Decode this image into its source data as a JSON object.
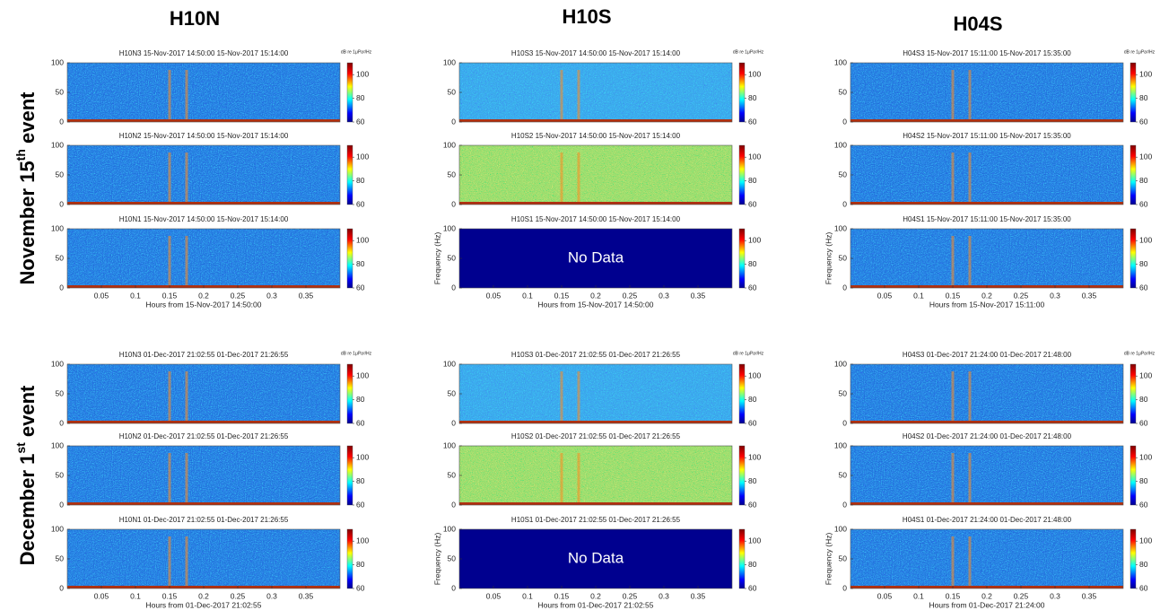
{
  "figure": {
    "columns": [
      "H10N",
      "H10S",
      "H04S"
    ],
    "rows": [
      {
        "label": [
          "November 15",
          "th",
          " event"
        ],
        "groups": [
          {
            "panels": [
              {
                "title": "H10N3 15-Nov-2017 14:50:00 15-Nov-2017 15:14:00"
              },
              {
                "title": "H10N2 15-Nov-2017 14:50:00 15-Nov-2017 15:14:00"
              },
              {
                "title": "H10N1 15-Nov-2017 14:50:00 15-Nov-2017 15:14:00"
              }
            ],
            "xlabel": "Hours from 15-Nov-2017 14:50:00"
          },
          {
            "panels": [
              {
                "title": "H10S3 15-Nov-2017 14:50:00 15-Nov-2017 15:14:00"
              },
              {
                "title": "H10S2 15-Nov-2017 14:50:00 15-Nov-2017 15:14:00"
              },
              {
                "title": "H10S1 15-Nov-2017 14:50:00 15-Nov-2017 15:14:00",
                "no_data": "No Data"
              }
            ],
            "xlabel": "Hours from 15-Nov-2017 14:50:00"
          },
          {
            "panels": [
              {
                "title": "H04S3 15-Nov-2017 15:11:00 15-Nov-2017 15:35:00"
              },
              {
                "title": "H04S2 15-Nov-2017 15:11:00 15-Nov-2017 15:35:00"
              },
              {
                "title": "H04S1 15-Nov-2017 15:11:00 15-Nov-2017 15:35:00"
              }
            ],
            "xlabel": "Hours from 15-Nov-2017 15:11:00"
          }
        ]
      },
      {
        "label": [
          "December 1",
          "st",
          " event"
        ],
        "groups": [
          {
            "panels": [
              {
                "title": "H10N3 01-Dec-2017 21:02:55 01-Dec-2017 21:26:55"
              },
              {
                "title": "H10N2 01-Dec-2017 21:02:55 01-Dec-2017 21:26:55"
              },
              {
                "title": "H10N1 01-Dec-2017 21:02:55 01-Dec-2017 21:26:55"
              }
            ],
            "xlabel": "Hours from 01-Dec-2017 21:02:55"
          },
          {
            "panels": [
              {
                "title": "H10S3 01-Dec-2017 21:02:55 01-Dec-2017 21:26:55"
              },
              {
                "title": "H10S2 01-Dec-2017 21:02:55 01-Dec-2017 21:26:55"
              },
              {
                "title": "H10S1 01-Dec-2017 21:02:55 01-Dec-2017 21:26:55",
                "no_data": "No Data"
              }
            ],
            "xlabel": "Hours from 01-Dec-2017 21:02:55"
          },
          {
            "panels": [
              {
                "title": "H04S3 01-Dec-2017 21:24:00 01-Dec-2017 21:48:00"
              },
              {
                "title": "H04S2 01-Dec-2017 21:24:00 01-Dec-2017 21:48:00"
              },
              {
                "title": "H04S1 01-Dec-2017 21:24:00 01-Dec-2017 21:48:00"
              }
            ],
            "xlabel": "Hours from 01-Dec-2017 21:24:00"
          }
        ]
      }
    ],
    "ylim": [
      0,
      100
    ],
    "yticks": [
      0,
      50,
      100
    ],
    "xlim": [
      0,
      0.4
    ],
    "xticks": [
      0.05,
      0.1,
      0.15,
      0.2,
      0.25,
      0.3,
      0.35
    ],
    "clim": [
      60,
      110
    ],
    "cticks": [
      60,
      80,
      100
    ],
    "ylabel": "Frequency (Hz)",
    "cbar_label": "dB re 1μPa²/Hz"
  }
}
